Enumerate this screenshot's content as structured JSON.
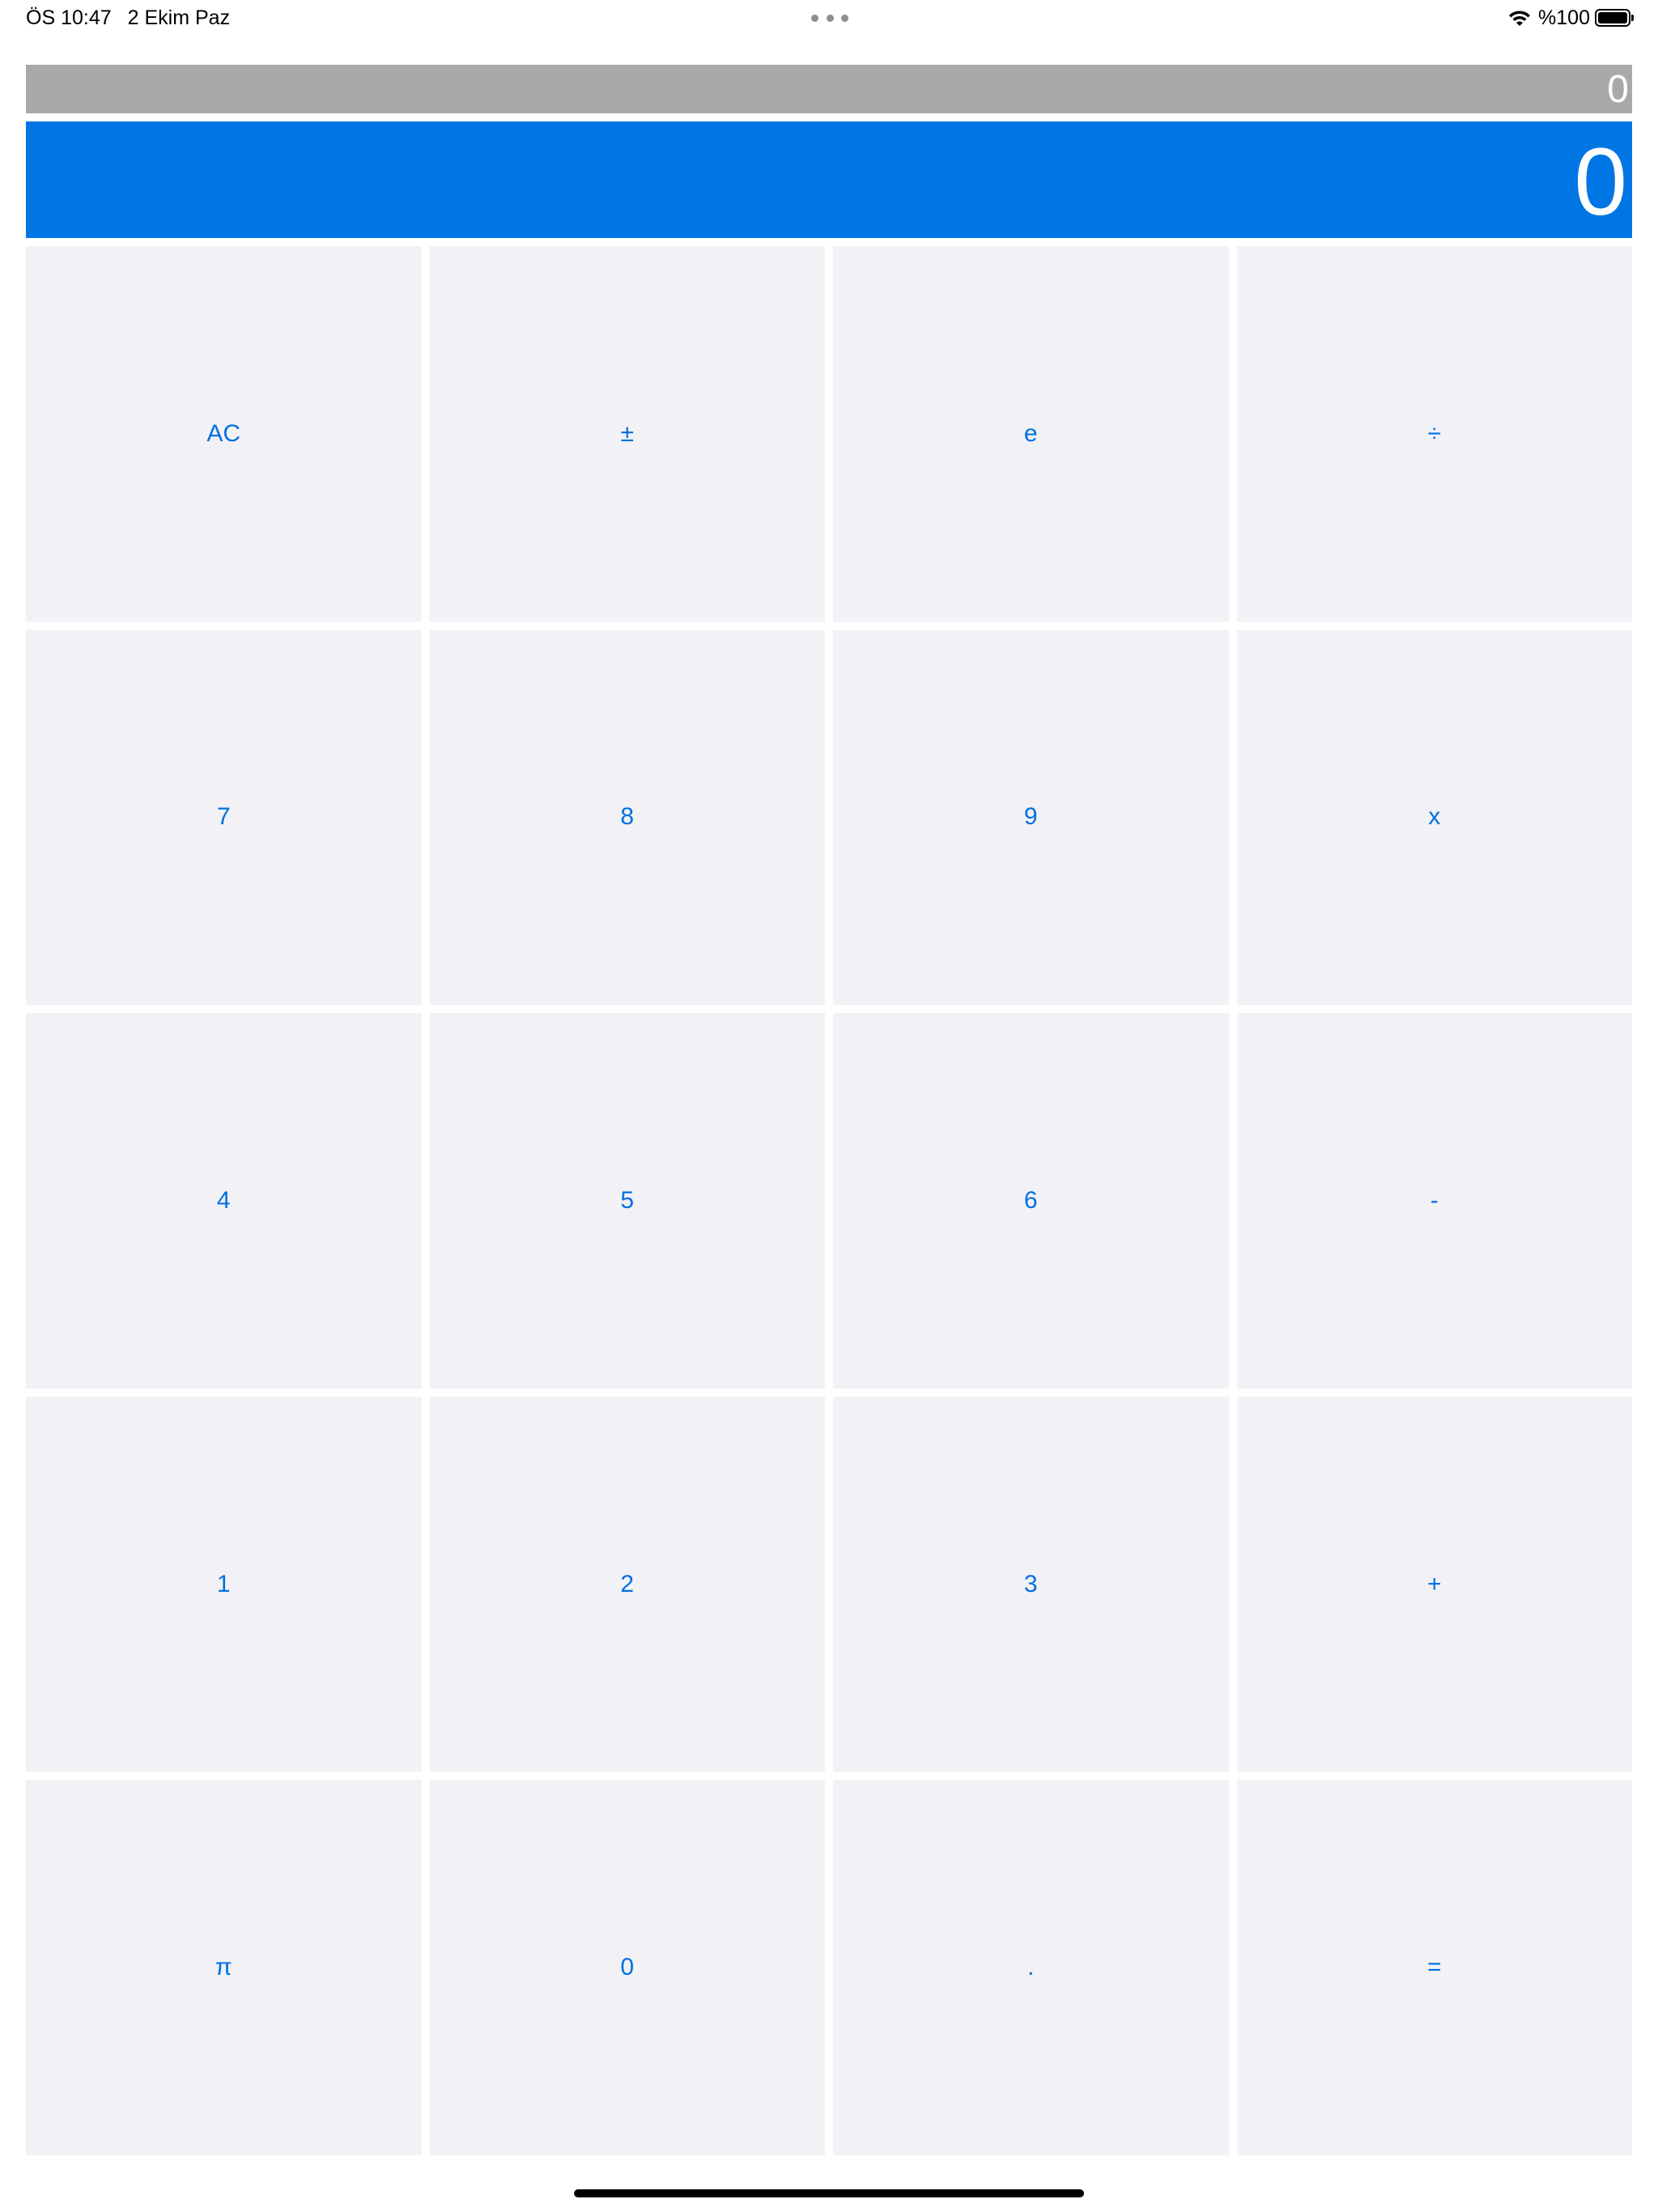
{
  "status_bar": {
    "time": "ÖS 10:47",
    "date": "2 Ekim Paz",
    "battery_text": "%100",
    "battery_level": 1.0
  },
  "display": {
    "history": "0",
    "main": "0",
    "history_bg": "#a9a9a9",
    "main_bg": "#0075e4"
  },
  "keys": [
    {
      "id": "clear",
      "label": "AC"
    },
    {
      "id": "sign",
      "label": "±"
    },
    {
      "id": "e",
      "label": "e"
    },
    {
      "id": "divide",
      "label": "÷"
    },
    {
      "id": "7",
      "label": "7"
    },
    {
      "id": "8",
      "label": "8"
    },
    {
      "id": "9",
      "label": "9"
    },
    {
      "id": "multiply",
      "label": "x"
    },
    {
      "id": "4",
      "label": "4"
    },
    {
      "id": "5",
      "label": "5"
    },
    {
      "id": "6",
      "label": "6"
    },
    {
      "id": "subtract",
      "label": "-"
    },
    {
      "id": "1",
      "label": "1"
    },
    {
      "id": "2",
      "label": "2"
    },
    {
      "id": "3",
      "label": "3"
    },
    {
      "id": "add",
      "label": "+"
    },
    {
      "id": "pi",
      "label": "π"
    },
    {
      "id": "0",
      "label": "0"
    },
    {
      "id": "decimal",
      "label": "."
    },
    {
      "id": "equals",
      "label": "="
    }
  ],
  "key_text_color": "#0070e0",
  "key_bg_color": "#f1f1f6"
}
